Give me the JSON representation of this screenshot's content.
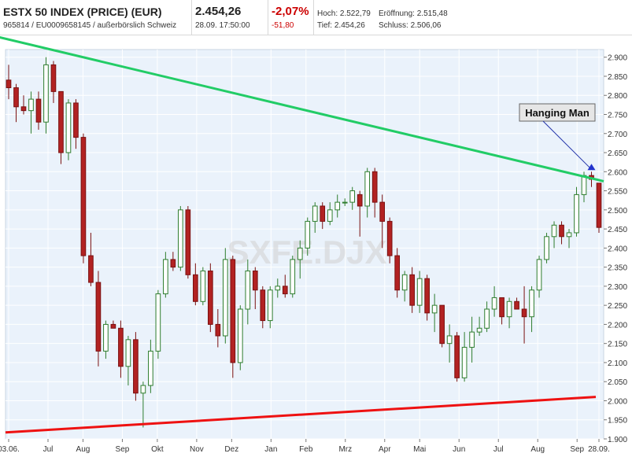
{
  "header": {
    "title": "ESTX 50 INDEX (PRICE) (EUR)",
    "subtitle": "965814 / EU0009658145 / außerbörslich Schweiz",
    "last": "2.454,26",
    "timestamp": "28.09. 17:50:00",
    "change_pct": "-2,07%",
    "change_abs": "-51,80",
    "hoch_label": "Hoch: 2.522,79",
    "tief_label": "Tief: 2.454,26",
    "eroeffnung_label": "Eröffnung: 2.515,48",
    "schluss_label": "Schluss: 2.506,06"
  },
  "colors": {
    "up_fill": "#ffffff",
    "up_stroke": "#2e7d2e",
    "down_fill": "#b22222",
    "down_stroke": "#7a1010",
    "resistance": "#22cc66",
    "support": "#ee1111",
    "plot_bg": "#eaf2fb",
    "grid": "#ffffff"
  },
  "watermark": "SXFE.DJX",
  "annotation": {
    "text": "Hanging Man"
  },
  "chart_data": {
    "type": "candlestick",
    "title": "ESTX 50 INDEX (PRICE) (EUR)",
    "ylim": [
      1900,
      2920
    ],
    "y_ticks": [
      "2.900",
      "2.850",
      "2.800",
      "2.750",
      "2.700",
      "2.650",
      "2.600",
      "2.550",
      "2.500",
      "2.450",
      "2.400",
      "2.350",
      "2.300",
      "2.250",
      "2.200",
      "2.150",
      "2.100",
      "2.050",
      "2.000",
      "1.950",
      "1.900"
    ],
    "y_tick_values": [
      2900,
      2850,
      2800,
      2750,
      2700,
      2650,
      2600,
      2550,
      2500,
      2450,
      2400,
      2350,
      2300,
      2250,
      2200,
      2150,
      2100,
      2050,
      2000,
      1950,
      1900
    ],
    "x_ticks": [
      "03.06.",
      "Jul",
      "Aug",
      "Sep",
      "Okt",
      "Nov",
      "Dez",
      "Jan",
      "Feb",
      "Mrz",
      "Apr",
      "Mai",
      "Jun",
      "Jul",
      "Aug",
      "Sep",
      "28.09."
    ],
    "x_tick_index": [
      0,
      9,
      17,
      26,
      34,
      43,
      51,
      60,
      68,
      77,
      86,
      94,
      103,
      112,
      121,
      130,
      135
    ],
    "candles": [
      {
        "o": 2840,
        "h": 2880,
        "l": 2790,
        "c": 2820
      },
      {
        "o": 2820,
        "h": 2830,
        "l": 2730,
        "c": 2770
      },
      {
        "o": 2770,
        "h": 2800,
        "l": 2750,
        "c": 2760
      },
      {
        "o": 2760,
        "h": 2810,
        "l": 2700,
        "c": 2790
      },
      {
        "o": 2790,
        "h": 2810,
        "l": 2710,
        "c": 2730
      },
      {
        "o": 2730,
        "h": 2900,
        "l": 2700,
        "c": 2880
      },
      {
        "o": 2880,
        "h": 2890,
        "l": 2780,
        "c": 2810
      },
      {
        "o": 2810,
        "h": 2810,
        "l": 2620,
        "c": 2650
      },
      {
        "o": 2650,
        "h": 2790,
        "l": 2630,
        "c": 2780
      },
      {
        "o": 2780,
        "h": 2790,
        "l": 2660,
        "c": 2690
      },
      {
        "o": 2690,
        "h": 2700,
        "l": 2360,
        "c": 2380
      },
      {
        "o": 2380,
        "h": 2440,
        "l": 2300,
        "c": 2310
      },
      {
        "o": 2310,
        "h": 2340,
        "l": 2090,
        "c": 2130
      },
      {
        "o": 2130,
        "h": 2210,
        "l": 2110,
        "c": 2200
      },
      {
        "o": 2200,
        "h": 2210,
        "l": 2190,
        "c": 2190
      },
      {
        "o": 2190,
        "h": 2210,
        "l": 2060,
        "c": 2090
      },
      {
        "o": 2090,
        "h": 2170,
        "l": 2040,
        "c": 2160
      },
      {
        "o": 2160,
        "h": 2180,
        "l": 2000,
        "c": 2020
      },
      {
        "o": 2020,
        "h": 2050,
        "l": 1930,
        "c": 2040
      },
      {
        "o": 2040,
        "h": 2160,
        "l": 2020,
        "c": 2130
      },
      {
        "o": 2130,
        "h": 2290,
        "l": 2110,
        "c": 2280
      },
      {
        "o": 2280,
        "h": 2390,
        "l": 2270,
        "c": 2370
      },
      {
        "o": 2370,
        "h": 2390,
        "l": 2340,
        "c": 2350
      },
      {
        "o": 2350,
        "h": 2510,
        "l": 2340,
        "c": 2500
      },
      {
        "o": 2500,
        "h": 2510,
        "l": 2320,
        "c": 2330
      },
      {
        "o": 2330,
        "h": 2360,
        "l": 2250,
        "c": 2260
      },
      {
        "o": 2260,
        "h": 2350,
        "l": 2250,
        "c": 2340
      },
      {
        "o": 2340,
        "h": 2360,
        "l": 2180,
        "c": 2200
      },
      {
        "o": 2200,
        "h": 2240,
        "l": 2140,
        "c": 2170
      },
      {
        "o": 2170,
        "h": 2400,
        "l": 2150,
        "c": 2370
      },
      {
        "o": 2370,
        "h": 2380,
        "l": 2060,
        "c": 2100
      },
      {
        "o": 2100,
        "h": 2250,
        "l": 2080,
        "c": 2240
      },
      {
        "o": 2240,
        "h": 2370,
        "l": 2200,
        "c": 2340
      },
      {
        "o": 2340,
        "h": 2350,
        "l": 2240,
        "c": 2290
      },
      {
        "o": 2290,
        "h": 2300,
        "l": 2190,
        "c": 2210
      },
      {
        "o": 2210,
        "h": 2300,
        "l": 2190,
        "c": 2290
      },
      {
        "o": 2290,
        "h": 2320,
        "l": 2270,
        "c": 2300
      },
      {
        "o": 2300,
        "h": 2330,
        "l": 2270,
        "c": 2280
      },
      {
        "o": 2280,
        "h": 2380,
        "l": 2270,
        "c": 2370
      },
      {
        "o": 2370,
        "h": 2420,
        "l": 2320,
        "c": 2400
      },
      {
        "o": 2400,
        "h": 2480,
        "l": 2380,
        "c": 2470
      },
      {
        "o": 2470,
        "h": 2520,
        "l": 2440,
        "c": 2510
      },
      {
        "o": 2510,
        "h": 2520,
        "l": 2450,
        "c": 2470
      },
      {
        "o": 2470,
        "h": 2520,
        "l": 2460,
        "c": 2500
      },
      {
        "o": 2500,
        "h": 2540,
        "l": 2480,
        "c": 2520
      },
      {
        "o": 2520,
        "h": 2530,
        "l": 2510,
        "c": 2520
      },
      {
        "o": 2520,
        "h": 2560,
        "l": 2500,
        "c": 2550
      },
      {
        "o": 2540,
        "h": 2550,
        "l": 2430,
        "c": 2510
      },
      {
        "o": 2510,
        "h": 2610,
        "l": 2480,
        "c": 2600
      },
      {
        "o": 2600,
        "h": 2610,
        "l": 2480,
        "c": 2520
      },
      {
        "o": 2520,
        "h": 2540,
        "l": 2400,
        "c": 2470
      },
      {
        "o": 2470,
        "h": 2480,
        "l": 2360,
        "c": 2380
      },
      {
        "o": 2380,
        "h": 2400,
        "l": 2270,
        "c": 2290
      },
      {
        "o": 2290,
        "h": 2340,
        "l": 2260,
        "c": 2330
      },
      {
        "o": 2330,
        "h": 2350,
        "l": 2230,
        "c": 2250
      },
      {
        "o": 2250,
        "h": 2340,
        "l": 2230,
        "c": 2320
      },
      {
        "o": 2320,
        "h": 2330,
        "l": 2210,
        "c": 2230
      },
      {
        "o": 2230,
        "h": 2280,
        "l": 2180,
        "c": 2250
      },
      {
        "o": 2250,
        "h": 2250,
        "l": 2140,
        "c": 2150
      },
      {
        "o": 2150,
        "h": 2200,
        "l": 2100,
        "c": 2170
      },
      {
        "o": 2170,
        "h": 2180,
        "l": 2050,
        "c": 2060
      },
      {
        "o": 2060,
        "h": 2180,
        "l": 2050,
        "c": 2140
      },
      {
        "o": 2140,
        "h": 2220,
        "l": 2100,
        "c": 2180
      },
      {
        "o": 2180,
        "h": 2220,
        "l": 2170,
        "c": 2190
      },
      {
        "o": 2190,
        "h": 2260,
        "l": 2180,
        "c": 2240
      },
      {
        "o": 2240,
        "h": 2300,
        "l": 2220,
        "c": 2270
      },
      {
        "o": 2270,
        "h": 2270,
        "l": 2200,
        "c": 2220
      },
      {
        "o": 2220,
        "h": 2270,
        "l": 2190,
        "c": 2260
      },
      {
        "o": 2260,
        "h": 2270,
        "l": 2240,
        "c": 2240
      },
      {
        "o": 2240,
        "h": 2300,
        "l": 2150,
        "c": 2220
      },
      {
        "o": 2220,
        "h": 2300,
        "l": 2180,
        "c": 2290
      },
      {
        "o": 2290,
        "h": 2380,
        "l": 2270,
        "c": 2370
      },
      {
        "o": 2370,
        "h": 2440,
        "l": 2360,
        "c": 2430
      },
      {
        "o": 2430,
        "h": 2470,
        "l": 2400,
        "c": 2460
      },
      {
        "o": 2460,
        "h": 2470,
        "l": 2410,
        "c": 2430
      },
      {
        "o": 2430,
        "h": 2450,
        "l": 2400,
        "c": 2440
      },
      {
        "o": 2440,
        "h": 2560,
        "l": 2430,
        "c": 2540
      },
      {
        "o": 2540,
        "h": 2600,
        "l": 2520,
        "c": 2590
      },
      {
        "o": 2590,
        "h": 2600,
        "l": 2560,
        "c": 2580
      },
      {
        "o": 2570,
        "h": 2570,
        "l": 2440,
        "c": 2454
      }
    ],
    "resistance_line": {
      "x": [
        "start",
        "28.09."
      ],
      "y": [
        2960,
        2575
      ],
      "start_index": 0,
      "end_index": 135
    },
    "support_line": {
      "y_start": 1917,
      "y_end": 2010
    },
    "annotation": {
      "text": "Hanging Man",
      "target_index": 78
    }
  }
}
